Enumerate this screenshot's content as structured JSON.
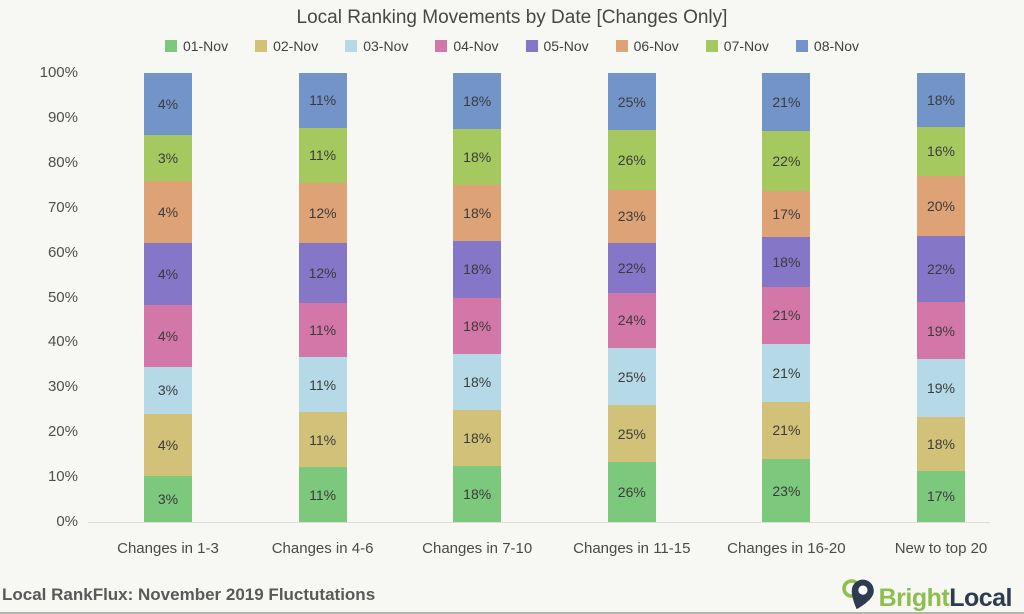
{
  "page": {
    "background_color": "#f7f7f4",
    "footer": {
      "caption": "Local RankFlux: November 2019 Fluctutations"
    },
    "logo": {
      "text_bright": "Bright",
      "text_local": "Local",
      "bright_color": "#8dbf4e",
      "local_color": "#2d3c4e",
      "pin_icon": "map-pin-icon"
    }
  },
  "chart_data": {
    "type": "bar",
    "variant": "100-percent-stacked-column",
    "title": "Local Ranking Movements by Date [Changes Only]",
    "legend_position": "top",
    "grid": false,
    "value_label_suffix": "%",
    "categories": [
      "Changes in 1-3",
      "Changes in 4-6",
      "Changes in 7-10",
      "Changes in 11-15",
      "Changes in 16-20",
      "New to top 20"
    ],
    "stack_order": "bottom to top follows series order",
    "series": [
      {
        "name": "01-Nov",
        "color": "#7cc87c",
        "values": [
          3,
          11,
          18,
          26,
          23,
          17
        ]
      },
      {
        "name": "02-Nov",
        "color": "#d2c178",
        "values": [
          4,
          11,
          18,
          25,
          21,
          18
        ]
      },
      {
        "name": "03-Nov",
        "color": "#b5d9e6",
        "values": [
          3,
          11,
          18,
          25,
          21,
          19
        ]
      },
      {
        "name": "04-Nov",
        "color": "#d377a8",
        "values": [
          4,
          11,
          18,
          24,
          21,
          19
        ]
      },
      {
        "name": "05-Nov",
        "color": "#8576c8",
        "values": [
          4,
          12,
          18,
          22,
          18,
          22
        ]
      },
      {
        "name": "06-Nov",
        "color": "#dda377",
        "values": [
          4,
          12,
          18,
          23,
          17,
          20
        ]
      },
      {
        "name": "07-Nov",
        "color": "#a5c95f",
        "values": [
          3,
          11,
          18,
          26,
          22,
          16
        ]
      },
      {
        "name": "08-Nov",
        "color": "#7394c9",
        "values": [
          4,
          11,
          18,
          25,
          21,
          18
        ]
      }
    ],
    "y_axis": {
      "min": 0,
      "max": 100,
      "tick_step": 10,
      "tick_labels": [
        "0%",
        "10%",
        "20%",
        "30%",
        "40%",
        "50%",
        "60%",
        "70%",
        "80%",
        "90%",
        "100%"
      ]
    }
  }
}
